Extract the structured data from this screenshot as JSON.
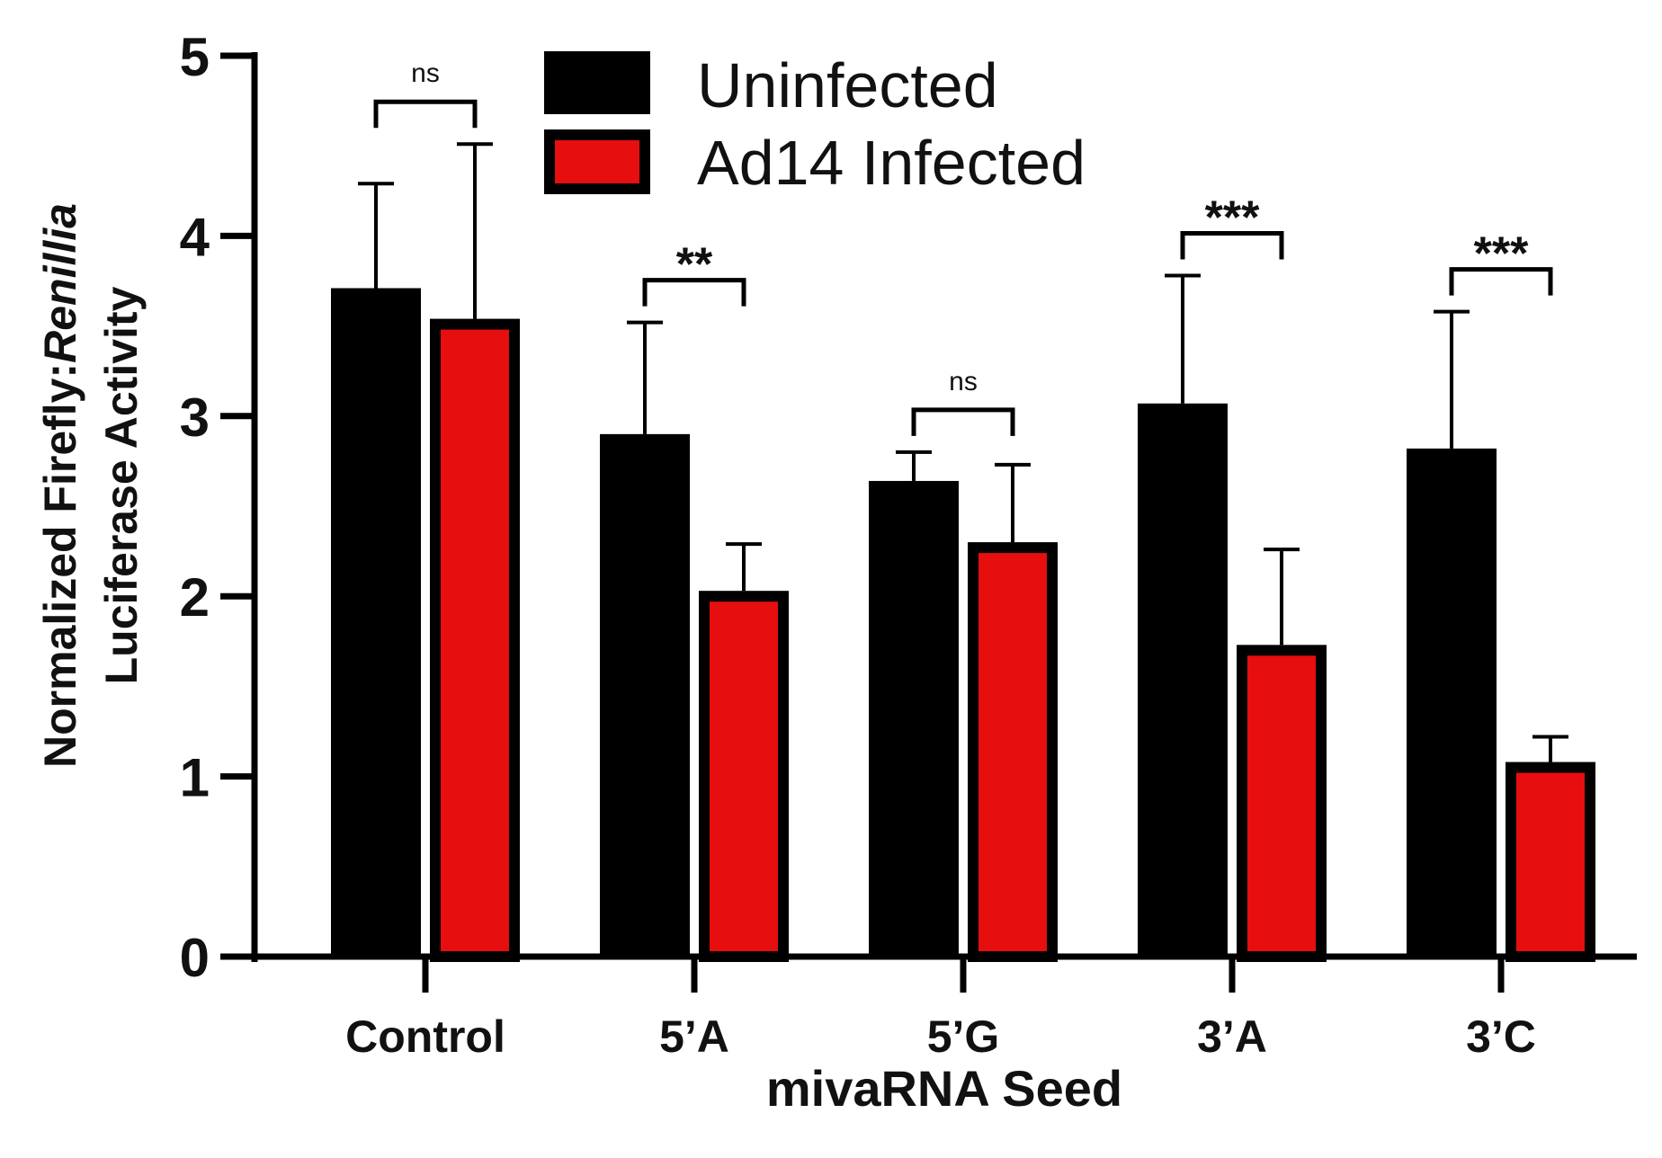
{
  "chart_data": {
    "type": "bar",
    "categories": [
      "Control",
      "5’A",
      "5’G",
      "3’A",
      "3’C"
    ],
    "series": [
      {
        "name": "Uninfected",
        "color": "#000000",
        "values": [
          3.71,
          2.9,
          2.64,
          3.07,
          2.82
        ],
        "errors": [
          0.58,
          0.62,
          0.16,
          0.71,
          0.76
        ]
      },
      {
        "name": "Ad14 Infected",
        "color": "#e60e0e",
        "values": [
          3.54,
          2.03,
          2.3,
          1.73,
          1.08
        ],
        "errors": [
          0.97,
          0.26,
          0.43,
          0.53,
          0.14
        ]
      }
    ],
    "significance": [
      "ns",
      "**",
      "ns",
      "***",
      "***"
    ],
    "xlabel": "mivaRNA Seed",
    "ylabel_part1": "Normalized Firefly:",
    "ylabel_italic": "Renillia",
    "ylabel_line2": "Luciferase Activity",
    "ylim": [
      0,
      5
    ],
    "yticks": [
      0,
      1,
      2,
      3,
      4,
      5
    ],
    "legend_position": "top-center"
  }
}
